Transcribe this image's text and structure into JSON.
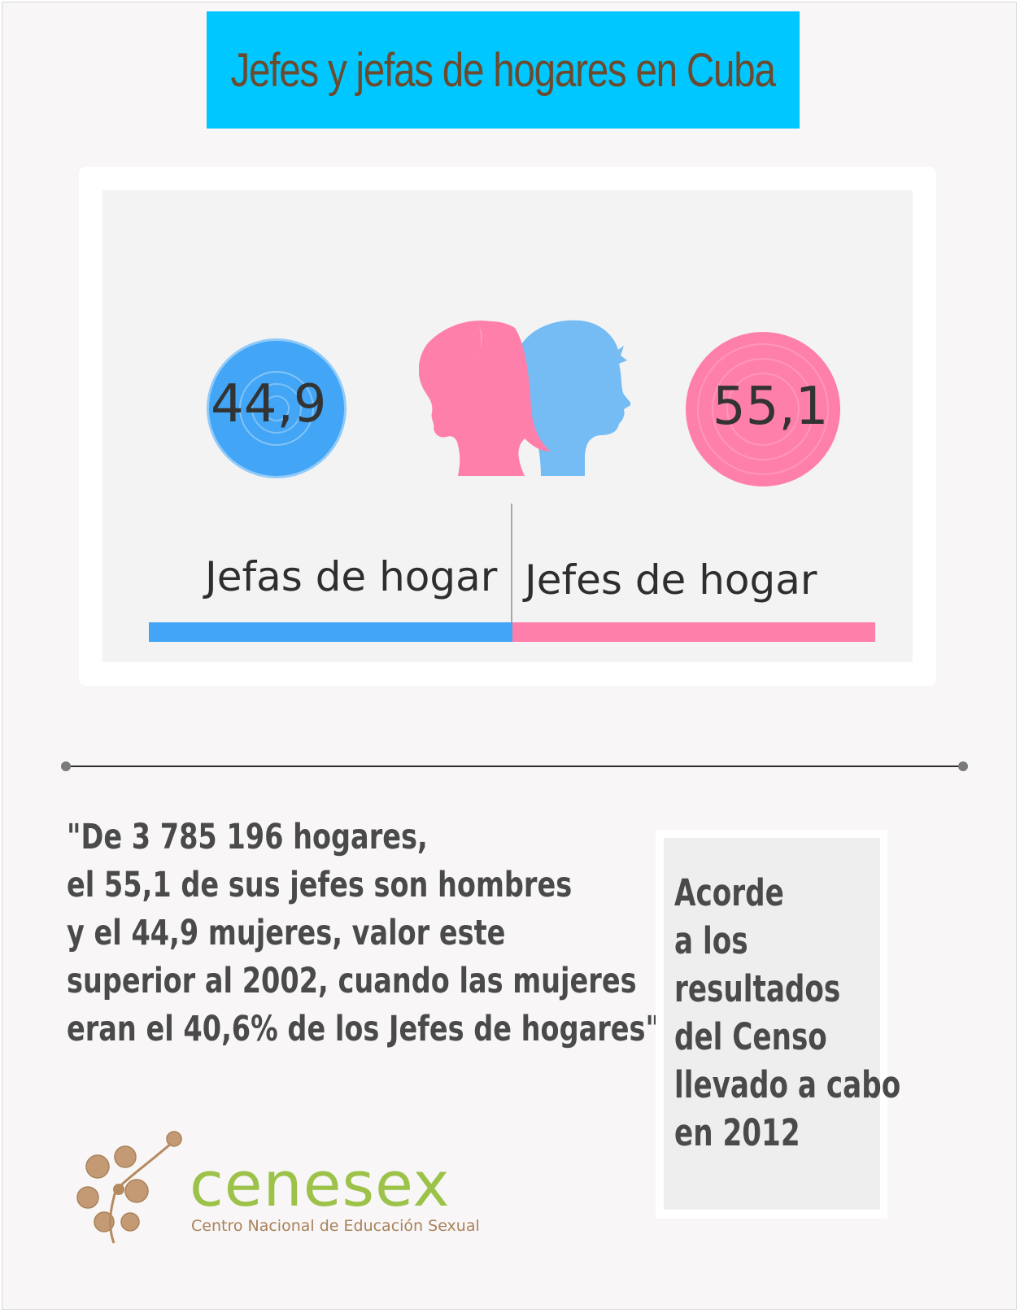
{
  "colors": {
    "title_bg": "#00c7ff",
    "female": "#42a5f5",
    "male": "#ff7fab",
    "title_text": "#6b4a2e"
  },
  "title": "Jefes y jefas de hogares en Cuba",
  "chart_data": {
    "type": "bar",
    "categories": [
      "Jefas de hogar",
      "Jefes de hogar"
    ],
    "values": [
      44.9,
      55.1
    ],
    "value_labels": [
      "44,9",
      "55,1"
    ]
  },
  "quote": {
    "lines": [
      "\"De 3 785 196 hogares,",
      "el 55,1 de sus jefes son hombres",
      "y el 44,9 mujeres, valor este",
      "superior al 2002, cuando las mujeres",
      "eran el 40,6% de los Jefes de hogares\"."
    ]
  },
  "side_note": {
    "lines": [
      "Acorde",
      "a los",
      "resultados",
      "del Censo",
      "llevado a cabo",
      "en 2012"
    ]
  },
  "logo": {
    "name": "cenesex",
    "subtitle": "Centro Nacional de Educación Sexual"
  }
}
